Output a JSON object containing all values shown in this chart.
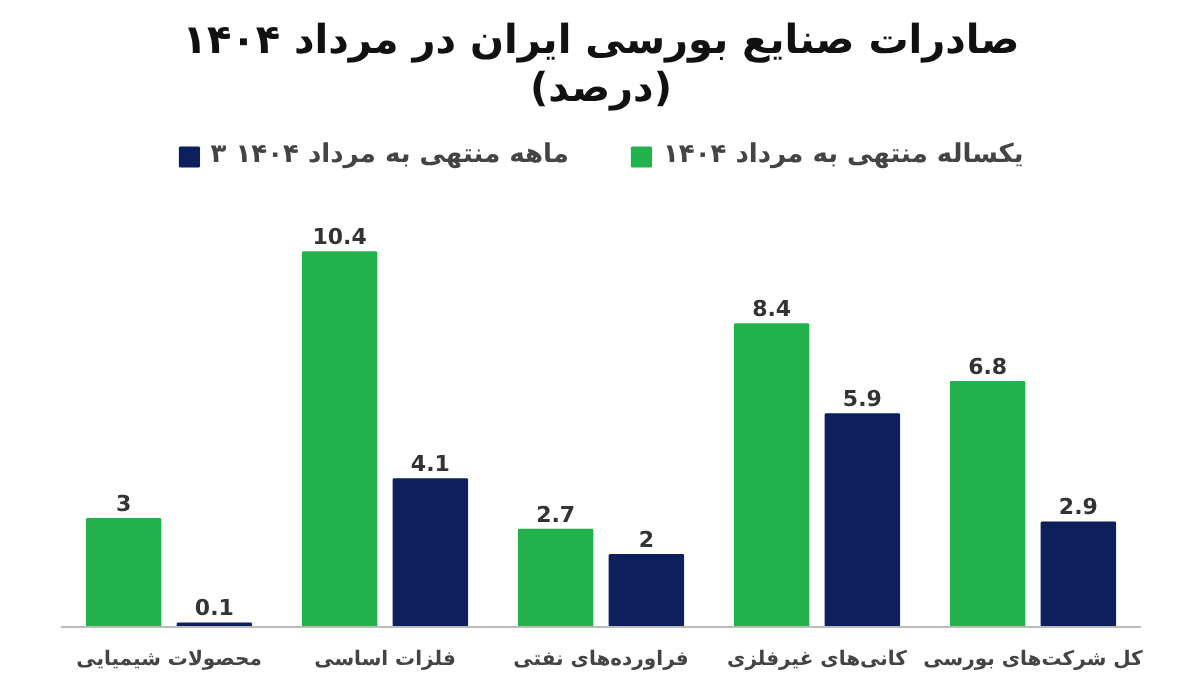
{
  "chart_data": {
    "type": "bar",
    "title": "صادرات صنایع بورسی ایران در مرداد ۱۴۰۴\n(درصد)",
    "categories": [
      "محصولات شیمیایی",
      "فلزات اساسی",
      "فراورده‌های نفتی",
      "کانی‌های غیرفلزی",
      "کل شرکت‌های بورسی"
    ],
    "series": [
      {
        "name": "یکساله منتهی به مرداد ۱۴۰۴",
        "color": "#21b24b",
        "values": [
          3,
          10.4,
          2.7,
          8.4,
          6.8
        ]
      },
      {
        "name": "۳ ماهه منتهی به مرداد ۱۴۰۴",
        "color": "#0d1f5c",
        "values": [
          0.1,
          4.1,
          2,
          5.9,
          2.9
        ]
      }
    ],
    "data_labels": true,
    "legend": "top",
    "grid": false
  }
}
